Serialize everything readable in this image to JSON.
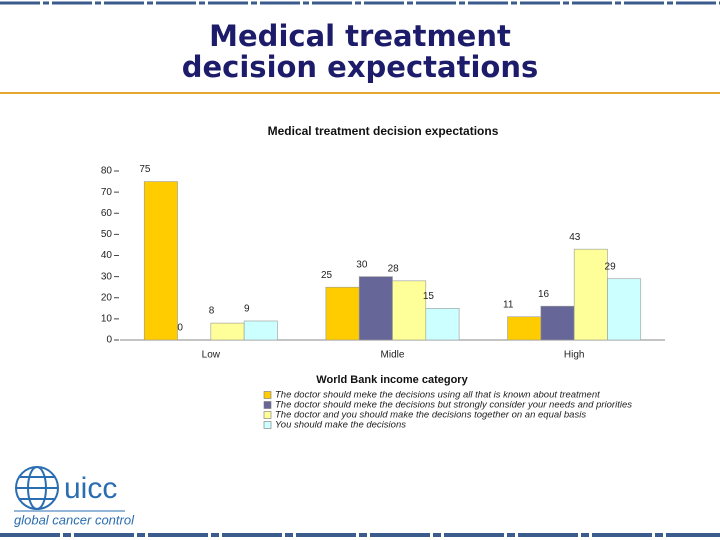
{
  "slide": {
    "title_lines": [
      "Medical treatment",
      "decision expectations"
    ]
  },
  "logo": {
    "name": "uicc",
    "tagline": "global cancer control"
  },
  "chart_data": {
    "type": "bar",
    "title": "Medical treatment decision expectations",
    "x_label": "World Bank income category",
    "categories": [
      "Low",
      "Midle",
      "High"
    ],
    "series": [
      {
        "name": "The doctor should meke the decisions using all that is known about treatment",
        "color": "#ffcc00",
        "values": [
          75,
          25,
          11
        ]
      },
      {
        "name": "The doctor should meke the decisions but strongly consider your needs and priorities",
        "color": "#666699",
        "values": [
          0,
          30,
          16
        ]
      },
      {
        "name": "The doctor and you should make the decisions together on an equal basis",
        "color": "#ffff99",
        "values": [
          8,
          28,
          43
        ]
      },
      {
        "name": "You should make the decisions",
        "color": "#ccffff",
        "values": [
          9,
          15,
          29
        ]
      }
    ],
    "ylim": [
      0,
      80
    ],
    "yticks": [
      0,
      10,
      20,
      30,
      40,
      50,
      60,
      70,
      80
    ],
    "grid": false
  }
}
